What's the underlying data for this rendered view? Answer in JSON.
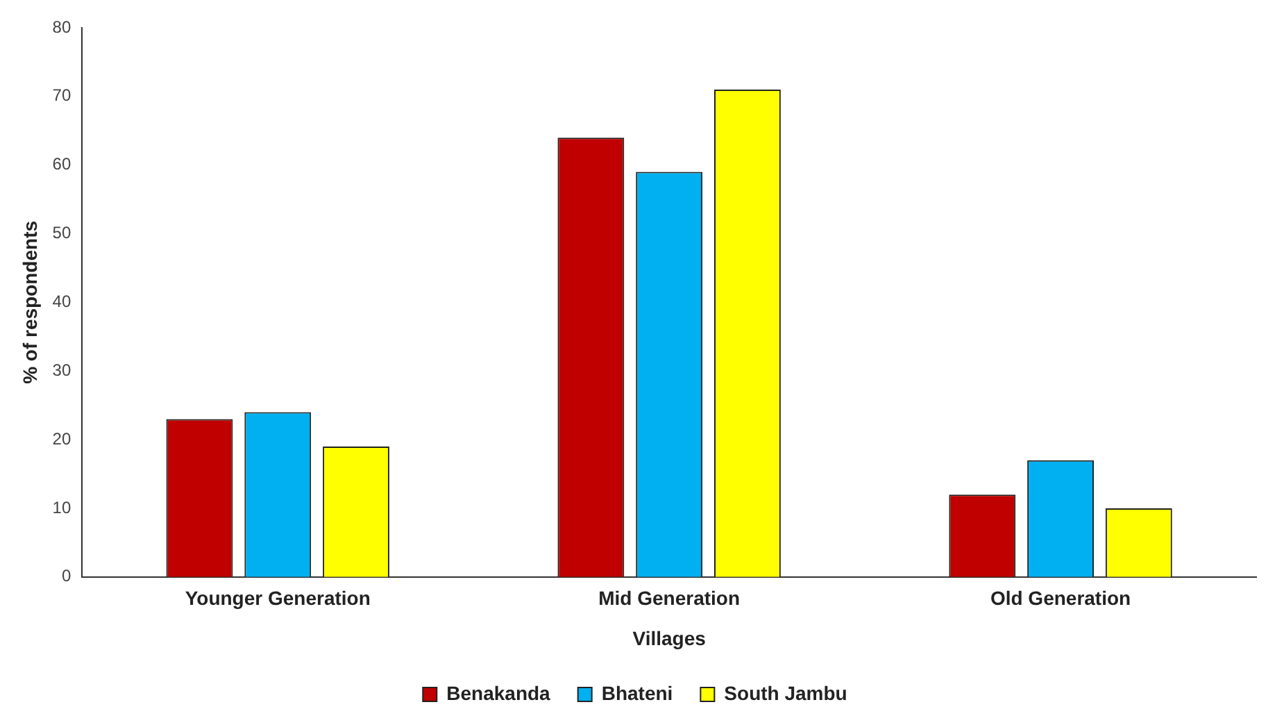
{
  "chart_data": {
    "type": "bar",
    "xlabel": "Villages",
    "ylabel": "% of respondents",
    "categories": [
      "Younger Generation",
      "Mid Generation",
      "Old Generation"
    ],
    "series": [
      {
        "name": "Benakanda",
        "color": "#c00000",
        "values": [
          23,
          64,
          12
        ]
      },
      {
        "name": "Bhateni",
        "color": "#00b0f0",
        "values": [
          24,
          59,
          17
        ]
      },
      {
        "name": "South Jambu",
        "color": "#ffff00",
        "values": [
          19,
          71,
          10
        ]
      }
    ],
    "ylim": [
      0,
      80
    ],
    "yticks": [
      0,
      10,
      20,
      30,
      40,
      50,
      60,
      70,
      80
    ],
    "grid": false,
    "legend": "bottom"
  }
}
